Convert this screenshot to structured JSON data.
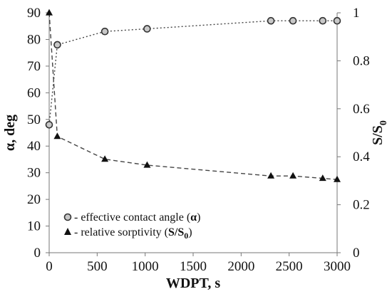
{
  "chart_data": {
    "type": "line",
    "x_axis": {
      "label": "WDPT, s",
      "range": [
        0,
        3000
      ],
      "ticks": [
        0,
        500,
        1000,
        1500,
        2000,
        2500,
        3000
      ]
    },
    "y_axis_left": {
      "label": "α, deg",
      "range": [
        0,
        90
      ],
      "ticks": [
        0,
        10,
        20,
        30,
        40,
        50,
        60,
        70,
        80,
        90
      ]
    },
    "y_axis_right": {
      "label_main": "S/S",
      "label_sub": "0",
      "range": [
        0,
        1
      ],
      "ticks": [
        0,
        0.2,
        0.4,
        0.6,
        0.8,
        1
      ]
    },
    "grid": false,
    "legend_position": "bottom-left",
    "series": [
      {
        "legend_text": " - effective contact angle (",
        "legend_bold": "α",
        "legend_tail": ")",
        "axis": "left",
        "marker": "circle",
        "line_style": "dotted",
        "marker_fill": "#c8c8c8",
        "x": [
          0,
          85,
          580,
          1020,
          2310,
          2540,
          2850,
          3000
        ],
        "y": [
          48,
          78,
          83,
          84,
          87,
          87,
          87,
          87
        ]
      },
      {
        "legend_text": " - relative sorptivity (",
        "legend_bold": "S/S",
        "legend_sub": "0",
        "legend_tail": ")",
        "axis": "right",
        "marker": "triangle",
        "line_style": "dashed",
        "marker_fill": "#111111",
        "x": [
          0,
          85,
          580,
          1020,
          2310,
          2540,
          2850,
          3000
        ],
        "y": [
          1.0,
          0.485,
          0.39,
          0.365,
          0.32,
          0.32,
          0.31,
          0.305
        ]
      }
    ]
  }
}
